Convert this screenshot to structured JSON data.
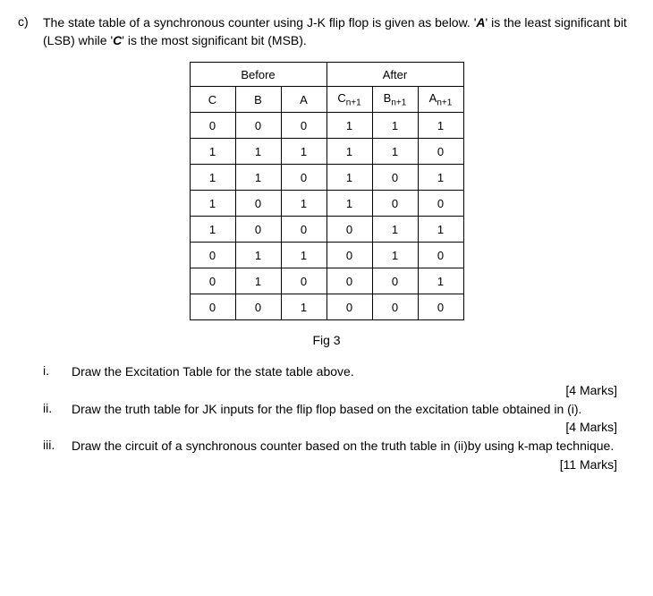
{
  "question": {
    "label": "c)",
    "text_parts": [
      "The state table of a synchronous counter using J-K flip flop is given as below. '",
      "A",
      "' is the least significant bit (LSB) while '",
      "C",
      "' is the most significant bit (MSB)."
    ]
  },
  "table": {
    "group_headers": [
      "Before",
      "After"
    ],
    "col_headers": {
      "c": "C",
      "b": "B",
      "a": "A",
      "cn": "C",
      "cn_sub": "n+1",
      "bn": "B",
      "bn_sub": "n+1",
      "an": "A",
      "an_sub": "n+1"
    },
    "rows": [
      [
        "0",
        "0",
        "0",
        "1",
        "1",
        "1"
      ],
      [
        "1",
        "1",
        "1",
        "1",
        "1",
        "0"
      ],
      [
        "1",
        "1",
        "0",
        "1",
        "0",
        "1"
      ],
      [
        "1",
        "0",
        "1",
        "1",
        "0",
        "0"
      ],
      [
        "1",
        "0",
        "0",
        "0",
        "1",
        "1"
      ],
      [
        "0",
        "1",
        "1",
        "0",
        "1",
        "0"
      ],
      [
        "0",
        "1",
        "0",
        "0",
        "0",
        "1"
      ],
      [
        "0",
        "0",
        "1",
        "0",
        "0",
        "0"
      ]
    ]
  },
  "fig_caption": "Fig 3",
  "subparts": [
    {
      "label": "i.",
      "text": "Draw the Excitation Table for the state table above.",
      "marks": "[4 Marks]"
    },
    {
      "label": "ii.",
      "text": "Draw the truth table for JK inputs for the flip flop based on the excitation table obtained in (i).",
      "marks": "[4 Marks]"
    },
    {
      "label": "iii.",
      "text": "Draw the circuit of a synchronous counter based on the truth table in (ii)by using k-map technique.",
      "marks": "[11 Marks]"
    }
  ]
}
